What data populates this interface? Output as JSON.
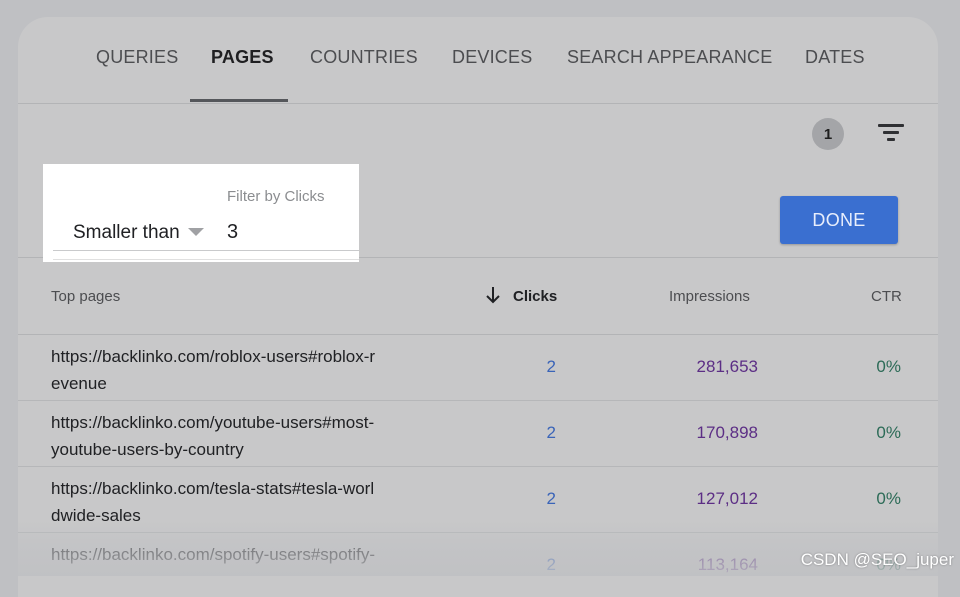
{
  "tabs": [
    {
      "label": "QUERIES"
    },
    {
      "label": "PAGES"
    },
    {
      "label": "COUNTRIES"
    },
    {
      "label": "DEVICES"
    },
    {
      "label": "SEARCH APPEARANCE"
    },
    {
      "label": "DATES"
    }
  ],
  "active_tab": "PAGES",
  "filter_count": "1",
  "filter": {
    "label": "Filter by Clicks",
    "condition": "Smaller than",
    "value": "3"
  },
  "done_label": "DONE",
  "table": {
    "headers": {
      "pages": "Top pages",
      "clicks": "Clicks",
      "impressions": "Impressions",
      "ctr": "CTR"
    },
    "rows": [
      {
        "url": "https://backlinko.com/roblox-users#roblox-revenue",
        "url_line1": "https://backlinko.com/roblox-users#roblox-r",
        "url_line2": "evenue",
        "clicks": "2",
        "impressions": "281,653",
        "ctr": "0%"
      },
      {
        "url": "https://backlinko.com/youtube-users#most-youtube-users-by-country",
        "url_line1": "https://backlinko.com/youtube-users#most-",
        "url_line2": "youtube-users-by-country",
        "clicks": "2",
        "impressions": "170,898",
        "ctr": "0%"
      },
      {
        "url": "https://backlinko.com/tesla-stats#tesla-worldwide-sales",
        "url_line1": "https://backlinko.com/tesla-stats#tesla-worl",
        "url_line2": "dwide-sales",
        "clicks": "2",
        "impressions": "127,012",
        "ctr": "0%"
      },
      {
        "url": "https://backlinko.com/spotify-users#spotify-",
        "url_line1": "https://backlinko.com/spotify-users#spotify-",
        "url_line2": "",
        "clicks": "2",
        "impressions": "113,164",
        "ctr": "0%"
      }
    ]
  },
  "watermark": "CSDN @SEO_juper",
  "colors": {
    "done_button": "#3a6fd0",
    "clicks": "#3a64b8",
    "impressions": "#5c2e85",
    "ctr": "#2c6b57"
  }
}
